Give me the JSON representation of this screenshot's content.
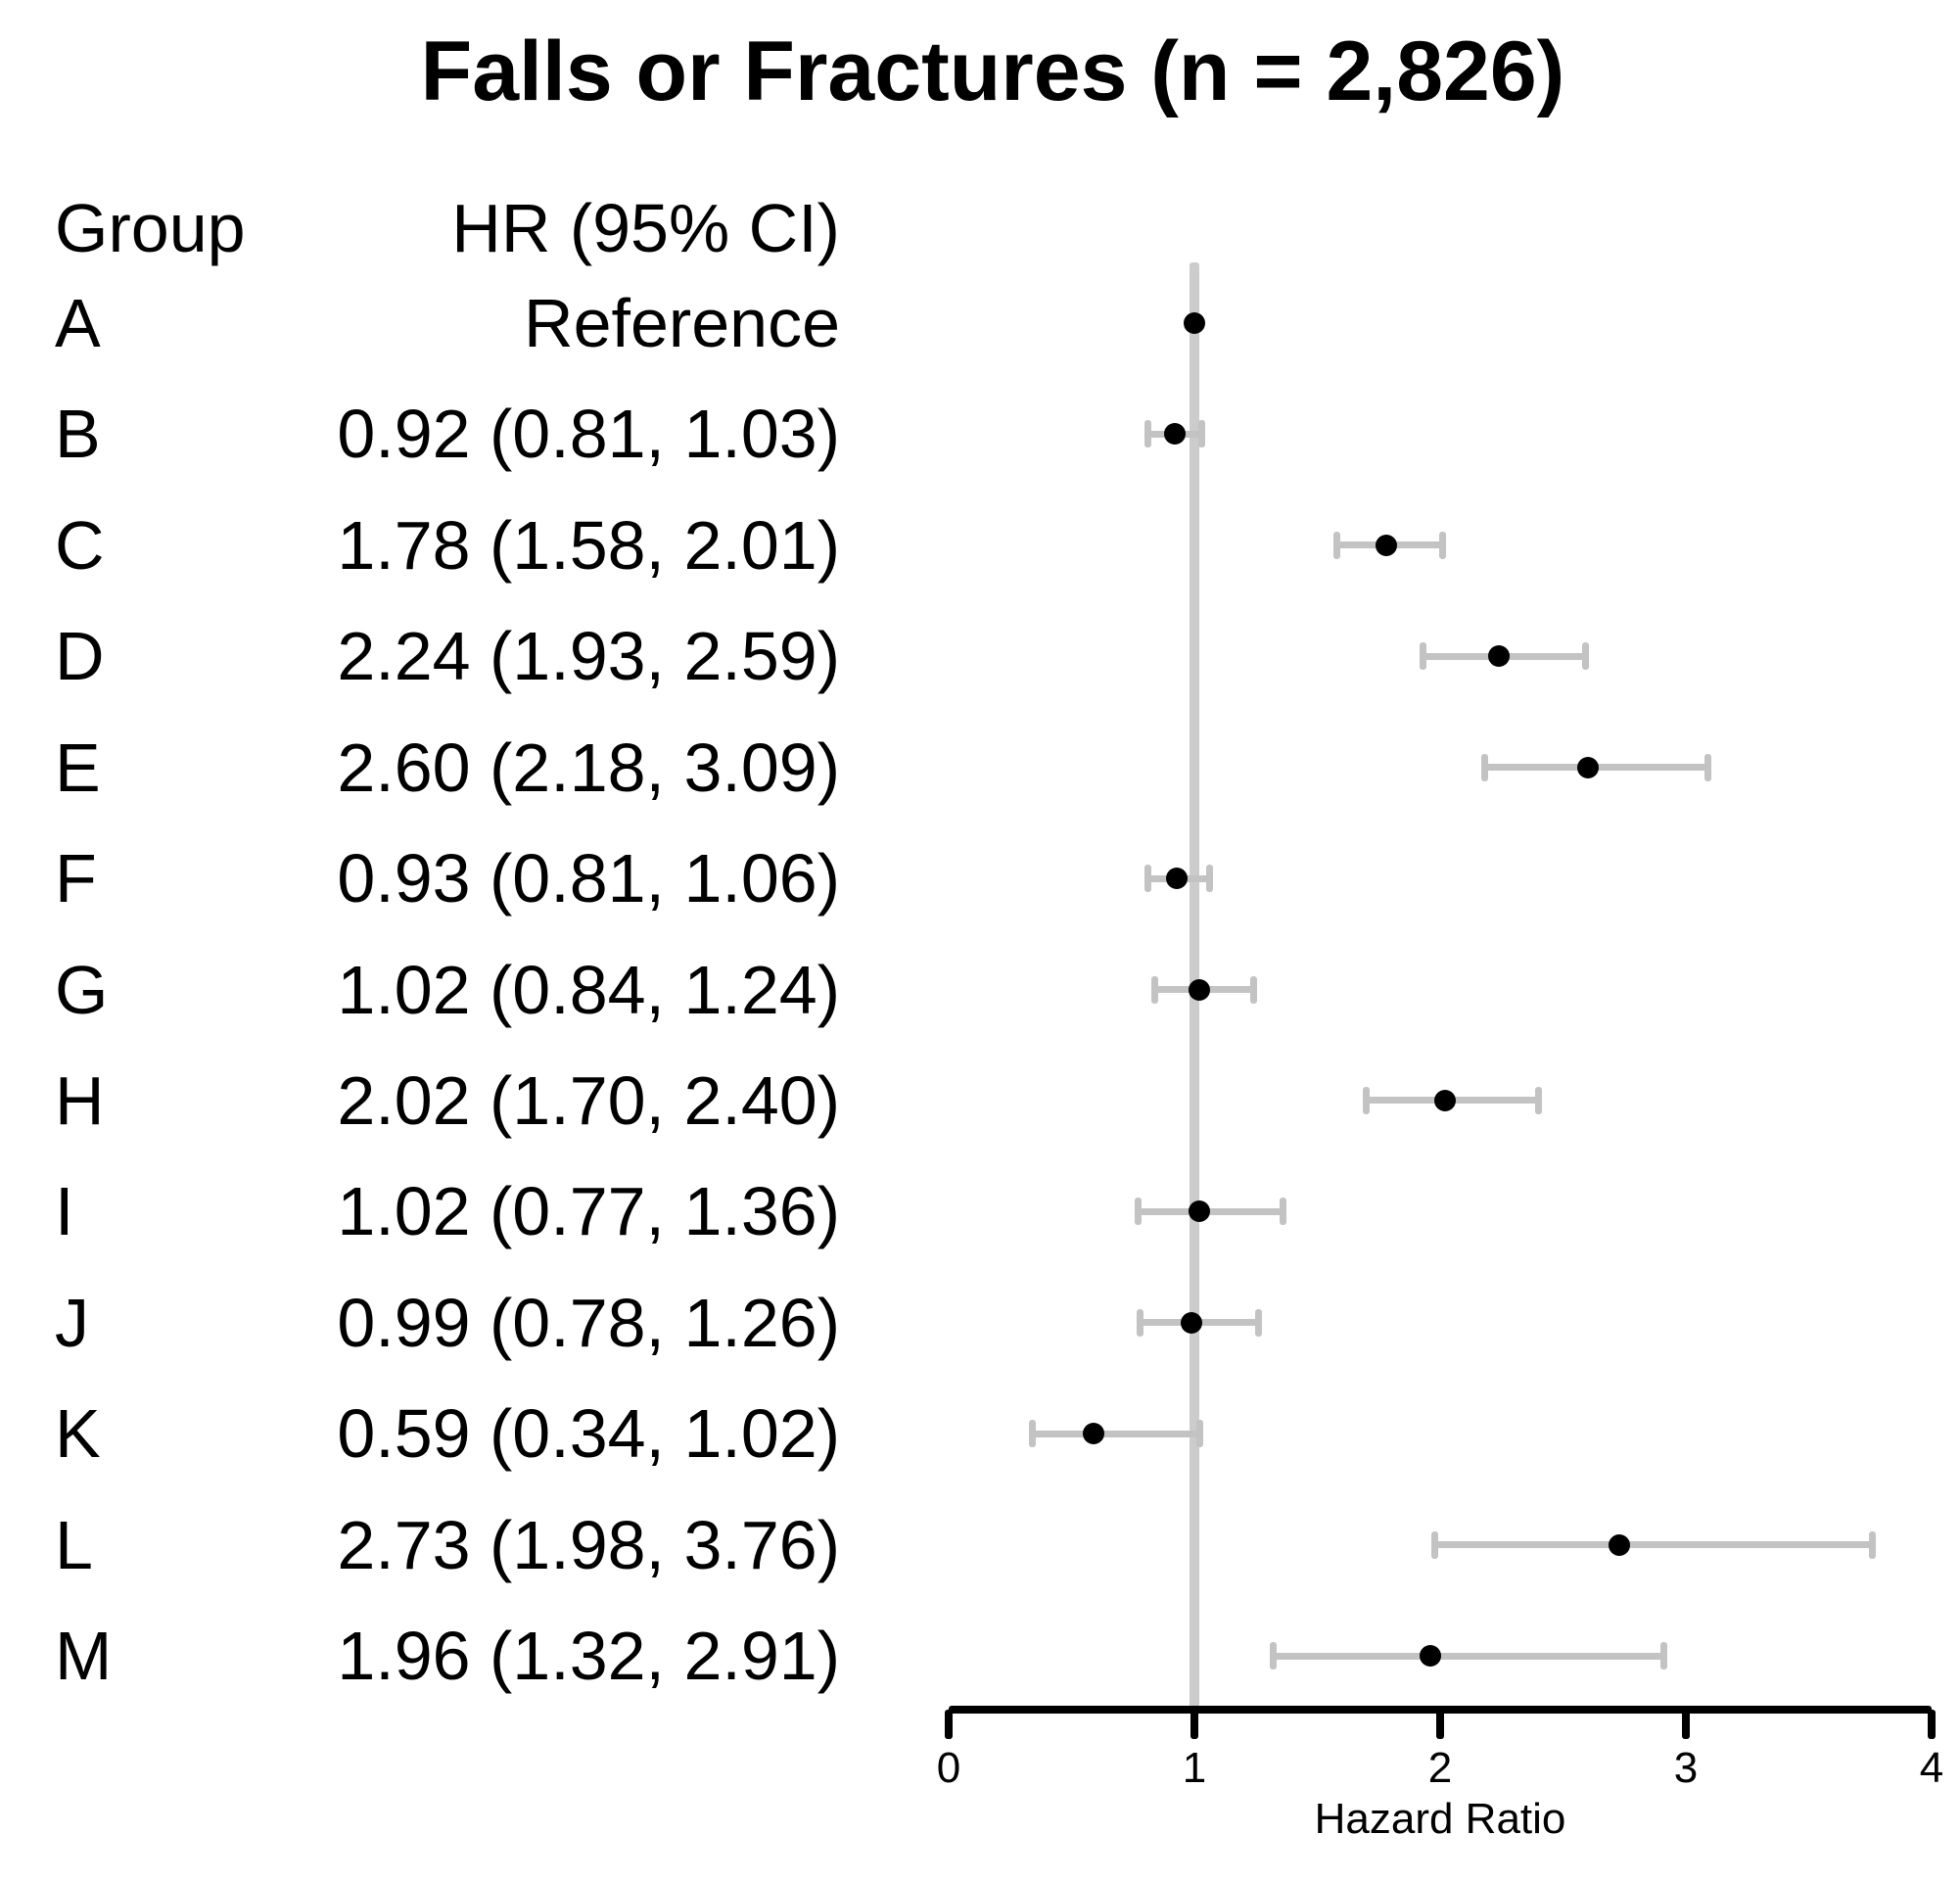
{
  "title": "Falls or Fractures (n = 2,826)",
  "table": {
    "group_header": "Group",
    "hr_header": "HR (95% CI)"
  },
  "chart_data": {
    "type": "scatter",
    "variant": "forest-plot",
    "title": "Falls or Fractures (n = 2,826)",
    "xlabel": "Hazard Ratio",
    "xlim": [
      0,
      4
    ],
    "x_ticks": [
      0,
      1,
      2,
      3,
      4
    ],
    "reference_line_x": 1,
    "grid": false,
    "legend": false,
    "rows": [
      {
        "group": "A",
        "hr_label": "Reference",
        "hr": 1.0,
        "lo": null,
        "hi": null,
        "reference": true
      },
      {
        "group": "B",
        "hr_label": "0.92 (0.81, 1.03)",
        "hr": 0.92,
        "lo": 0.81,
        "hi": 1.03
      },
      {
        "group": "C",
        "hr_label": "1.78 (1.58, 2.01)",
        "hr": 1.78,
        "lo": 1.58,
        "hi": 2.01
      },
      {
        "group": "D",
        "hr_label": "2.24 (1.93, 2.59)",
        "hr": 2.24,
        "lo": 1.93,
        "hi": 2.59
      },
      {
        "group": "E",
        "hr_label": "2.60 (2.18, 3.09)",
        "hr": 2.6,
        "lo": 2.18,
        "hi": 3.09
      },
      {
        "group": "F",
        "hr_label": "0.93 (0.81, 1.06)",
        "hr": 0.93,
        "lo": 0.81,
        "hi": 1.06
      },
      {
        "group": "G",
        "hr_label": "1.02 (0.84, 1.24)",
        "hr": 1.02,
        "lo": 0.84,
        "hi": 1.24
      },
      {
        "group": "H",
        "hr_label": "2.02 (1.70, 2.40)",
        "hr": 2.02,
        "lo": 1.7,
        "hi": 2.4
      },
      {
        "group": "I",
        "hr_label": "1.02 (0.77, 1.36)",
        "hr": 1.02,
        "lo": 0.77,
        "hi": 1.36
      },
      {
        "group": "J",
        "hr_label": "0.99 (0.78, 1.26)",
        "hr": 0.99,
        "lo": 0.78,
        "hi": 1.26
      },
      {
        "group": "K",
        "hr_label": "0.59 (0.34, 1.02)",
        "hr": 0.59,
        "lo": 0.34,
        "hi": 1.02
      },
      {
        "group": "L",
        "hr_label": "2.73 (1.98, 3.76)",
        "hr": 2.73,
        "lo": 1.98,
        "hi": 3.76
      },
      {
        "group": "M",
        "hr_label": "1.96 (1.32, 2.91)",
        "hr": 1.96,
        "lo": 1.32,
        "hi": 2.91
      }
    ]
  },
  "colors": {
    "point": "#000000",
    "error_bar": "#c3c3c3",
    "reference_line": "#cccccc",
    "axis": "#000000",
    "text": "#000000",
    "background": "#ffffff"
  }
}
